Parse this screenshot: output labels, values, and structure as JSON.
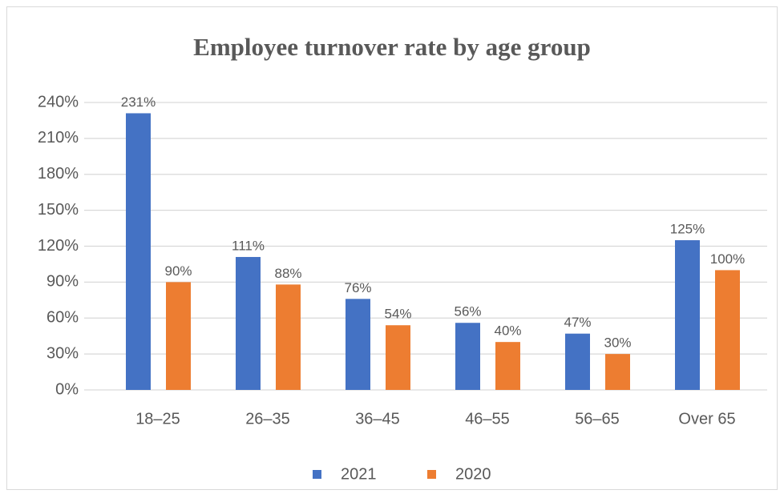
{
  "chart_data": {
    "type": "bar",
    "title": "Employee turnover rate by age group",
    "categories": [
      "18–25",
      "26–35",
      "36–45",
      "46–55",
      "56–65",
      "Over 65"
    ],
    "series": [
      {
        "name": "2021",
        "color": "#4472c4",
        "values": [
          231,
          111,
          76,
          56,
          47,
          125
        ],
        "value_labels": [
          "231%",
          "111%",
          "76%",
          "56%",
          "47%",
          "125%"
        ]
      },
      {
        "name": "2020",
        "color": "#ed7d31",
        "values": [
          90,
          88,
          54,
          40,
          30,
          100
        ],
        "value_labels": [
          "90%",
          "88%",
          "54%",
          "40%",
          "30%",
          "100%"
        ]
      }
    ],
    "ylim": [
      0,
      240
    ],
    "yticks": [
      {
        "value": 0,
        "label": "0%"
      },
      {
        "value": 30,
        "label": "30%"
      },
      {
        "value": 60,
        "label": "60%"
      },
      {
        "value": 90,
        "label": "90%"
      },
      {
        "value": 120,
        "label": "120%"
      },
      {
        "value": 150,
        "label": "150%"
      },
      {
        "value": 180,
        "label": "180%"
      },
      {
        "value": 210,
        "label": "210%"
      },
      {
        "value": 240,
        "label": "240%"
      }
    ],
    "grid": true,
    "legend": "bottom"
  }
}
